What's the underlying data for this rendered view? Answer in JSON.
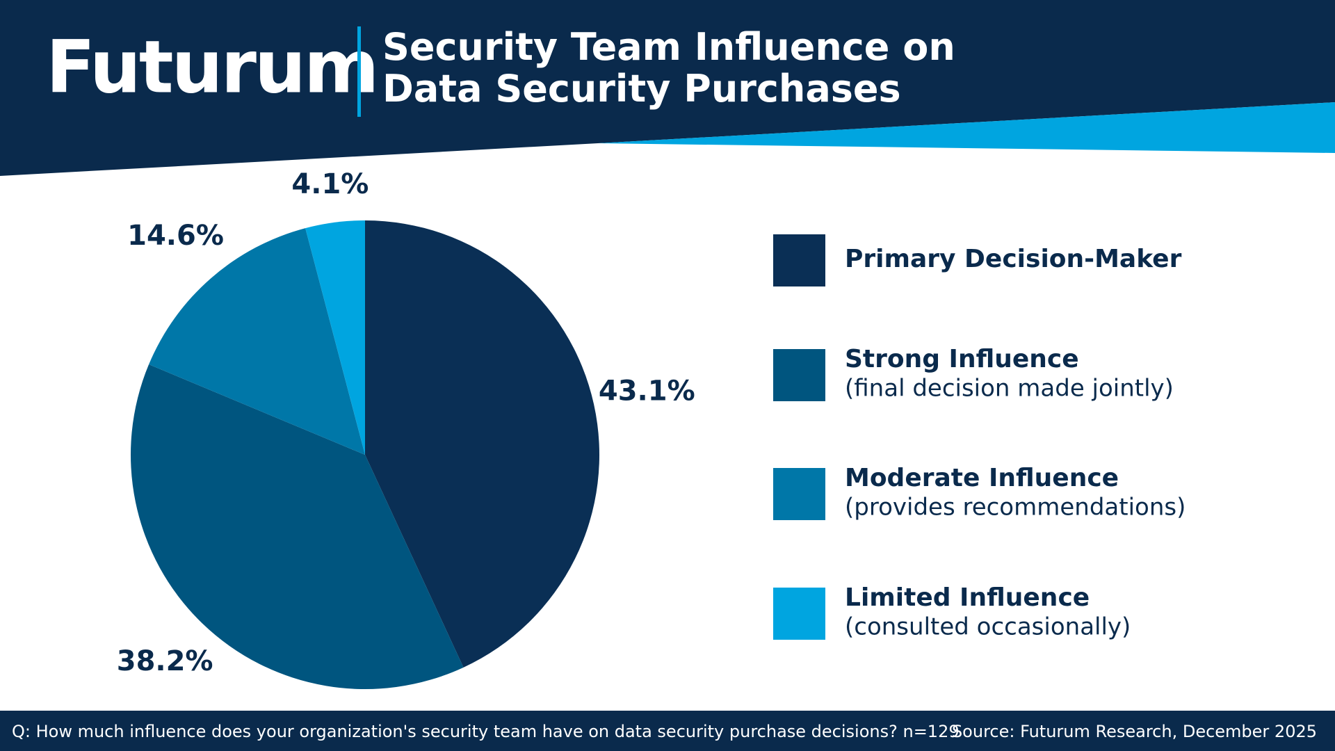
{
  "brand": "Futurum",
  "chart_data": {
    "type": "pie",
    "title": "Security Team Influence on Data Security Purchases",
    "categories": [
      "Primary Decision-Maker",
      "Strong Influence",
      "Moderate Influence",
      "Limited Influence"
    ],
    "category_notes": [
      null,
      "(final decision made jointly)",
      "(provides recommendations)",
      "(consulted occasionally)"
    ],
    "values": [
      43.1,
      38.2,
      14.6,
      4.1
    ],
    "value_labels": [
      "43.1%",
      "38.2%",
      "14.6%",
      "4.1%"
    ],
    "colors": [
      "#0a2f55",
      "#00557f",
      "#0077a8",
      "#00a5e0"
    ],
    "legend": "right"
  },
  "footer": {
    "question": "Q: How much influence does your organization's security team have on data security purchase decisions? n=129",
    "source": "Source: Futurum Research, December 2025"
  }
}
